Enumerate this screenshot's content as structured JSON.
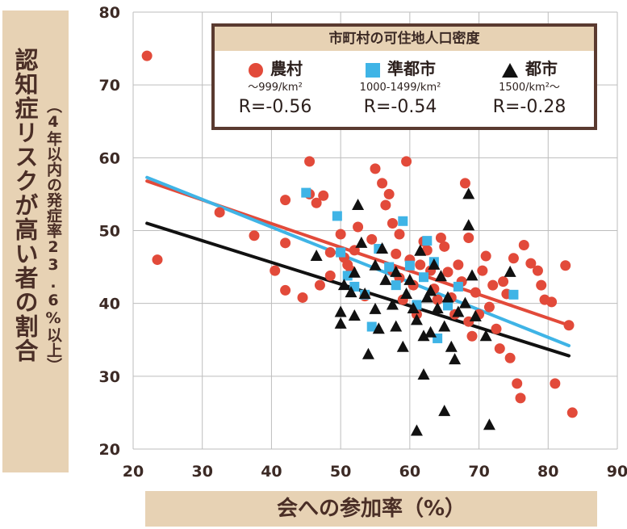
{
  "y_axis_label": "認知症リスクが高い者の割合",
  "y_axis_sublabel": "（4年以内の発症率23.6%以上）",
  "x_axis_label": "会への参加率（%）",
  "legend": {
    "title": "市町村の可住地人口密度",
    "items": [
      {
        "name": "農村",
        "range": "～999/km²",
        "r": "R=-0.56",
        "symbol": "circle",
        "color": "#e24a3a"
      },
      {
        "name": "準都市",
        "range": "1000-1499/km²",
        "r": "R=-0.54",
        "symbol": "square",
        "color": "#3fb4e6"
      },
      {
        "name": "都市",
        "range": "1500/km²～",
        "r": "R=-0.28",
        "symbol": "triangle",
        "color": "#111111"
      }
    ]
  },
  "chart_data": {
    "type": "scatter",
    "title": "",
    "xlabel": "会への参加率（%）",
    "ylabel": "認知症リスクが高い者の割合",
    "xlim": [
      20,
      90
    ],
    "ylim": [
      20,
      80
    ],
    "xticks": [
      20,
      30,
      40,
      50,
      60,
      70,
      80,
      90
    ],
    "yticks": [
      20,
      30,
      40,
      50,
      60,
      70,
      80
    ],
    "grid": true,
    "series": [
      {
        "name": "農村",
        "marker": "circle",
        "color": "#e24a3a",
        "trendline": {
          "x": [
            22,
            83
          ],
          "y": [
            56.8,
            37.0
          ]
        },
        "points": [
          [
            22,
            74
          ],
          [
            23.5,
            46
          ],
          [
            32.5,
            52.5
          ],
          [
            37.5,
            49.3
          ],
          [
            40.5,
            44.5
          ],
          [
            42,
            54.2
          ],
          [
            42,
            48.3
          ],
          [
            42,
            41.8
          ],
          [
            44.5,
            40.8
          ],
          [
            45.5,
            59.5
          ],
          [
            45.5,
            55
          ],
          [
            46.5,
            53.8
          ],
          [
            47.5,
            54.8
          ],
          [
            47,
            42.5
          ],
          [
            48.5,
            47
          ],
          [
            48.5,
            43.8
          ],
          [
            50,
            49.5
          ],
          [
            50.5,
            46.3
          ],
          [
            51,
            45.3
          ],
          [
            51.5,
            44.5
          ],
          [
            52,
            47.3
          ],
          [
            52.5,
            50.5
          ],
          [
            53.5,
            41
          ],
          [
            54.5,
            48.8
          ],
          [
            55,
            58.5
          ],
          [
            56,
            56.5
          ],
          [
            56.5,
            53.5
          ],
          [
            57,
            55
          ],
          [
            57.5,
            51
          ],
          [
            57.5,
            44.5
          ],
          [
            58,
            46.8
          ],
          [
            58.5,
            49.5
          ],
          [
            58.5,
            43.5
          ],
          [
            59,
            40.5
          ],
          [
            59.5,
            59.5
          ],
          [
            60,
            46
          ],
          [
            60.5,
            42.5
          ],
          [
            61,
            38.5
          ],
          [
            61.5,
            45.3
          ],
          [
            62,
            48.5
          ],
          [
            62.5,
            47.3
          ],
          [
            63,
            44.5
          ],
          [
            63.5,
            42
          ],
          [
            64,
            40.5
          ],
          [
            64.5,
            49
          ],
          [
            65,
            47.8
          ],
          [
            65.5,
            44.3
          ],
          [
            66,
            40.8
          ],
          [
            66.5,
            38.5
          ],
          [
            67,
            45.3
          ],
          [
            67.5,
            43
          ],
          [
            68,
            56.5
          ],
          [
            68.5,
            49
          ],
          [
            68.5,
            37.5
          ],
          [
            69,
            35.5
          ],
          [
            69.5,
            41.5
          ],
          [
            70,
            38.5
          ],
          [
            70.5,
            44.5
          ],
          [
            71,
            46.5
          ],
          [
            71.5,
            39.5
          ],
          [
            72,
            42.5
          ],
          [
            72.5,
            36.5
          ],
          [
            73,
            33.8
          ],
          [
            73.5,
            43
          ],
          [
            74,
            41.3
          ],
          [
            74.5,
            32.5
          ],
          [
            75,
            46.2
          ],
          [
            75.5,
            29
          ],
          [
            76,
            27
          ],
          [
            76.5,
            48
          ],
          [
            77.5,
            45.5
          ],
          [
            78.5,
            44.5
          ],
          [
            79,
            42.5
          ],
          [
            79.5,
            40.5
          ],
          [
            80.5,
            40.2
          ],
          [
            81,
            29
          ],
          [
            82.5,
            45.2
          ],
          [
            83,
            37
          ],
          [
            83.5,
            25
          ]
        ]
      },
      {
        "name": "準都市",
        "marker": "square",
        "color": "#3fb4e6",
        "trendline": {
          "x": [
            22,
            83
          ],
          "y": [
            57.3,
            34.2
          ]
        },
        "points": [
          [
            45,
            55.2
          ],
          [
            49.5,
            52
          ],
          [
            50,
            47
          ],
          [
            51,
            43.8
          ],
          [
            52,
            42.3
          ],
          [
            53.5,
            41.2
          ],
          [
            54.5,
            36.8
          ],
          [
            55.5,
            47.5
          ],
          [
            57,
            45
          ],
          [
            58,
            42.5
          ],
          [
            59,
            51.3
          ],
          [
            60,
            45.2
          ],
          [
            61,
            39.8
          ],
          [
            62,
            43.6
          ],
          [
            62.5,
            48.6
          ],
          [
            63.5,
            45.7
          ],
          [
            64,
            35.2
          ],
          [
            65.5,
            39.7
          ],
          [
            67,
            42.3
          ],
          [
            75,
            41.2
          ]
        ]
      },
      {
        "name": "都市",
        "marker": "triangle",
        "color": "#111111",
        "trendline": {
          "x": [
            22,
            83
          ],
          "y": [
            51.0,
            32.8
          ]
        },
        "points": [
          [
            46.5,
            46.5
          ],
          [
            50,
            37.2
          ],
          [
            50,
            38.8
          ],
          [
            50.5,
            42.5
          ],
          [
            51.5,
            41.5
          ],
          [
            52,
            44.2
          ],
          [
            52,
            38.3
          ],
          [
            52.5,
            53.5
          ],
          [
            53,
            48.3
          ],
          [
            53.5,
            41.3
          ],
          [
            54,
            33
          ],
          [
            55,
            45.2
          ],
          [
            55,
            39.2
          ],
          [
            55.5,
            36.5
          ],
          [
            56,
            47.5
          ],
          [
            56.5,
            43.2
          ],
          [
            57.5,
            39.8
          ],
          [
            58,
            44.3
          ],
          [
            58,
            36.8
          ],
          [
            59,
            34
          ],
          [
            59.5,
            41.3
          ],
          [
            60,
            43.2
          ],
          [
            60.5,
            39.3
          ],
          [
            61,
            22.5
          ],
          [
            61,
            37.7
          ],
          [
            61.5,
            47.2
          ],
          [
            62,
            35.5
          ],
          [
            62,
            30.2
          ],
          [
            62.5,
            40.8
          ],
          [
            63,
            41.7
          ],
          [
            63,
            36
          ],
          [
            63.5,
            45.3
          ],
          [
            64,
            39.3
          ],
          [
            64.5,
            43.7
          ],
          [
            65,
            36.8
          ],
          [
            65,
            25.2
          ],
          [
            65.5,
            40.8
          ],
          [
            66,
            34
          ],
          [
            66.5,
            32.3
          ],
          [
            67,
            38.8
          ],
          [
            68,
            40
          ],
          [
            68.5,
            55
          ],
          [
            68.5,
            50.7
          ],
          [
            69,
            43.8
          ],
          [
            69.5,
            38.2
          ],
          [
            71,
            35.5
          ],
          [
            71.5,
            23.3
          ],
          [
            74.5,
            44.3
          ]
        ]
      }
    ]
  }
}
